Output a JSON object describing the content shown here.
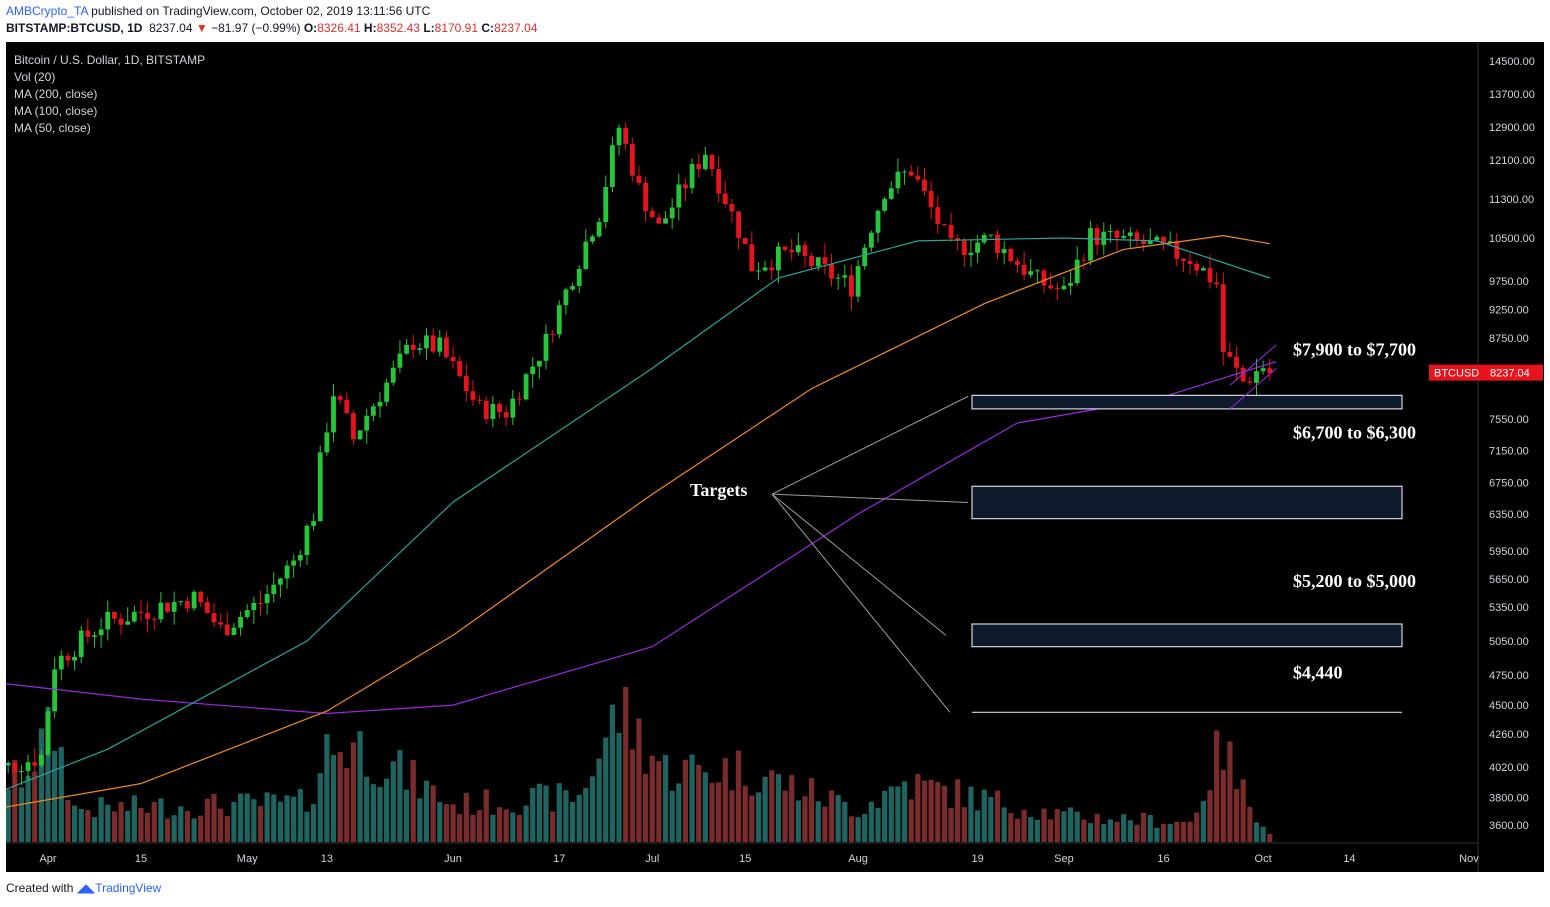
{
  "header": {
    "author": "AMBCrypto_TA",
    "published": " published on TradingView.com, October 02, 2019 13:11:56 UTC",
    "symbol": "BITSTAMP:BTCUSD, 1D",
    "last": "8237.04",
    "change": "−81.97 (−0.99%)",
    "o_label": "O:",
    "o_val": "8326.41",
    "h_label": "H:",
    "h_val": "8352.43",
    "l_label": "L:",
    "l_val": "8170.91",
    "c_label": "C:",
    "c_val": "8237.04"
  },
  "legend": {
    "title": "Bitcoin / U.S. Dollar, 1D, BITSTAMP",
    "vol": "Vol (20)",
    "ma200": "MA (200, close)",
    "ma100": "MA (100, close)",
    "ma50": "MA (50, close)"
  },
  "footer": {
    "created": "Created with",
    "brand": "TradingView"
  },
  "colors": {
    "background": "#000000",
    "up": "#26c63a",
    "down": "#e8141d",
    "vol_up": "#1e6461",
    "vol_down": "#7a2b2b",
    "ma50": "#26a69a",
    "ma100": "#f08a24",
    "ma200": "#9c27e0",
    "last_price_tag": "#e8141d"
  },
  "chart_data": {
    "type": "candlestick",
    "title": "Bitcoin / U.S. Dollar, 1D, BITSTAMP",
    "ylim": [
      3400,
      14900
    ],
    "y_ticks": [
      "14500.00",
      "13700.00",
      "12900.00",
      "12100.00",
      "11300.00",
      "10500.00",
      "9750.00",
      "9250.00",
      "8750.00",
      "8237.04",
      "7550.00",
      "7150.00",
      "6750.00",
      "6350.00",
      "5950.00",
      "5650.00",
      "5350.00",
      "5050.00",
      "4750.00",
      "4500.00",
      "4260.00",
      "4020.00",
      "3800.00",
      "3600.00"
    ],
    "x_ticks": [
      {
        "label": "Apr",
        "date": "2019-04-01"
      },
      {
        "label": "15",
        "date": "2019-04-15"
      },
      {
        "label": "May",
        "date": "2019-05-01"
      },
      {
        "label": "13",
        "date": "2019-05-13"
      },
      {
        "label": "Jun",
        "date": "2019-06-01"
      },
      {
        "label": "17",
        "date": "2019-06-17"
      },
      {
        "label": "Jul",
        "date": "2019-07-01"
      },
      {
        "label": "15",
        "date": "2019-07-15"
      },
      {
        "label": "Aug",
        "date": "2019-08-01"
      },
      {
        "label": "19",
        "date": "2019-08-19"
      },
      {
        "label": "Sep",
        "date": "2019-09-01"
      },
      {
        "label": "16",
        "date": "2019-09-16"
      },
      {
        "label": "Oct",
        "date": "2019-10-01"
      },
      {
        "label": "14",
        "date": "2019-10-14"
      },
      {
        "label": "Nov",
        "date": "2019-11-01"
      }
    ],
    "last_price": {
      "label": "BTCUSD",
      "value": 8237.04
    },
    "price_keypoints": [
      {
        "date": "2019-03-22",
        "price": 3960
      },
      {
        "date": "2019-03-31",
        "price": 4100
      },
      {
        "date": "2019-04-02",
        "price": 4850
      },
      {
        "date": "2019-04-09",
        "price": 5200
      },
      {
        "date": "2019-04-23",
        "price": 5450
      },
      {
        "date": "2019-04-27",
        "price": 5150
      },
      {
        "date": "2019-05-03",
        "price": 5400
      },
      {
        "date": "2019-05-08",
        "price": 5850
      },
      {
        "date": "2019-05-11",
        "price": 6350
      },
      {
        "date": "2019-05-12",
        "price": 7000
      },
      {
        "date": "2019-05-14",
        "price": 7950
      },
      {
        "date": "2019-05-17",
        "price": 7300
      },
      {
        "date": "2019-05-26",
        "price": 8700
      },
      {
        "date": "2019-05-30",
        "price": 8600
      },
      {
        "date": "2019-06-05",
        "price": 7700
      },
      {
        "date": "2019-06-09",
        "price": 7650
      },
      {
        "date": "2019-06-15",
        "price": 8700
      },
      {
        "date": "2019-06-23",
        "price": 11000
      },
      {
        "date": "2019-06-26",
        "price": 12900
      },
      {
        "date": "2019-06-29",
        "price": 11500
      },
      {
        "date": "2019-07-02",
        "price": 10700
      },
      {
        "date": "2019-07-09",
        "price": 12300
      },
      {
        "date": "2019-07-16",
        "price": 10000
      },
      {
        "date": "2019-07-22",
        "price": 10250
      },
      {
        "date": "2019-07-31",
        "price": 9650
      },
      {
        "date": "2019-08-05",
        "price": 11500
      },
      {
        "date": "2019-08-09",
        "price": 11900
      },
      {
        "date": "2019-08-15",
        "price": 10300
      },
      {
        "date": "2019-08-21",
        "price": 10500
      },
      {
        "date": "2019-08-28",
        "price": 9750
      },
      {
        "date": "2019-09-01",
        "price": 9550
      },
      {
        "date": "2019-09-05",
        "price": 10550
      },
      {
        "date": "2019-09-13",
        "price": 10400
      },
      {
        "date": "2019-09-20",
        "price": 10150
      },
      {
        "date": "2019-09-24",
        "price": 9700
      },
      {
        "date": "2019-09-25",
        "price": 8550
      },
      {
        "date": "2019-09-28",
        "price": 8100
      },
      {
        "date": "2019-10-01",
        "price": 8330
      },
      {
        "date": "2019-10-02",
        "price": 8237
      }
    ],
    "ma50_keypoints": [
      {
        "date": "2019-03-22",
        "price": 3790
      },
      {
        "date": "2019-04-10",
        "price": 4150
      },
      {
        "date": "2019-05-10",
        "price": 5050
      },
      {
        "date": "2019-06-01",
        "price": 6500
      },
      {
        "date": "2019-07-01",
        "price": 8300
      },
      {
        "date": "2019-07-20",
        "price": 9800
      },
      {
        "date": "2019-08-10",
        "price": 10450
      },
      {
        "date": "2019-09-01",
        "price": 10500
      },
      {
        "date": "2019-09-15",
        "price": 10450
      },
      {
        "date": "2019-10-02",
        "price": 9800
      }
    ],
    "ma100_keypoints": [
      {
        "date": "2019-03-22",
        "price": 3700
      },
      {
        "date": "2019-04-15",
        "price": 3900
      },
      {
        "date": "2019-05-13",
        "price": 4450
      },
      {
        "date": "2019-06-01",
        "price": 5100
      },
      {
        "date": "2019-07-01",
        "price": 6600
      },
      {
        "date": "2019-07-25",
        "price": 8000
      },
      {
        "date": "2019-08-20",
        "price": 9350
      },
      {
        "date": "2019-09-10",
        "price": 10300
      },
      {
        "date": "2019-09-25",
        "price": 10550
      },
      {
        "date": "2019-10-02",
        "price": 10400
      }
    ],
    "ma200_keypoints": [
      {
        "date": "2019-03-22",
        "price": 4700
      },
      {
        "date": "2019-04-15",
        "price": 4550
      },
      {
        "date": "2019-05-13",
        "price": 4430
      },
      {
        "date": "2019-06-01",
        "price": 4500
      },
      {
        "date": "2019-07-01",
        "price": 5000
      },
      {
        "date": "2019-08-01",
        "price": 6350
      },
      {
        "date": "2019-08-25",
        "price": 7500
      },
      {
        "date": "2019-09-15",
        "price": 7850
      },
      {
        "date": "2019-10-03",
        "price": 8400
      }
    ],
    "volume_keypoints": [
      {
        "date": "2019-03-22",
        "v": 0.15
      },
      {
        "date": "2019-04-02",
        "v": 0.85
      },
      {
        "date": "2019-04-05",
        "v": 0.25
      },
      {
        "date": "2019-05-10",
        "v": 0.3
      },
      {
        "date": "2019-05-13",
        "v": 0.7
      },
      {
        "date": "2019-05-17",
        "v": 0.75
      },
      {
        "date": "2019-06-01",
        "v": 0.28
      },
      {
        "date": "2019-06-20",
        "v": 0.35
      },
      {
        "date": "2019-06-26",
        "v": 1.0
      },
      {
        "date": "2019-07-03",
        "v": 0.55
      },
      {
        "date": "2019-07-15",
        "v": 0.55
      },
      {
        "date": "2019-08-01",
        "v": 0.25
      },
      {
        "date": "2019-08-08",
        "v": 0.45
      },
      {
        "date": "2019-09-01",
        "v": 0.2
      },
      {
        "date": "2019-09-20",
        "v": 0.15
      },
      {
        "date": "2019-09-25",
        "v": 0.75
      },
      {
        "date": "2019-09-27",
        "v": 0.45
      },
      {
        "date": "2019-10-02",
        "v": 0.08
      }
    ],
    "annotations": {
      "targets_label": "Targets",
      "zones": [
        {
          "label": "$7,900 to $7,700",
          "high": 7900,
          "low": 7700
        },
        {
          "label": "$6,700 to $6,300",
          "high": 6700,
          "low": 6300
        },
        {
          "label": "$5,200 to $5,000",
          "high": 5200,
          "low": 5000
        },
        {
          "label": "$4,440",
          "high": 4440,
          "low": 4440
        }
      ]
    }
  }
}
